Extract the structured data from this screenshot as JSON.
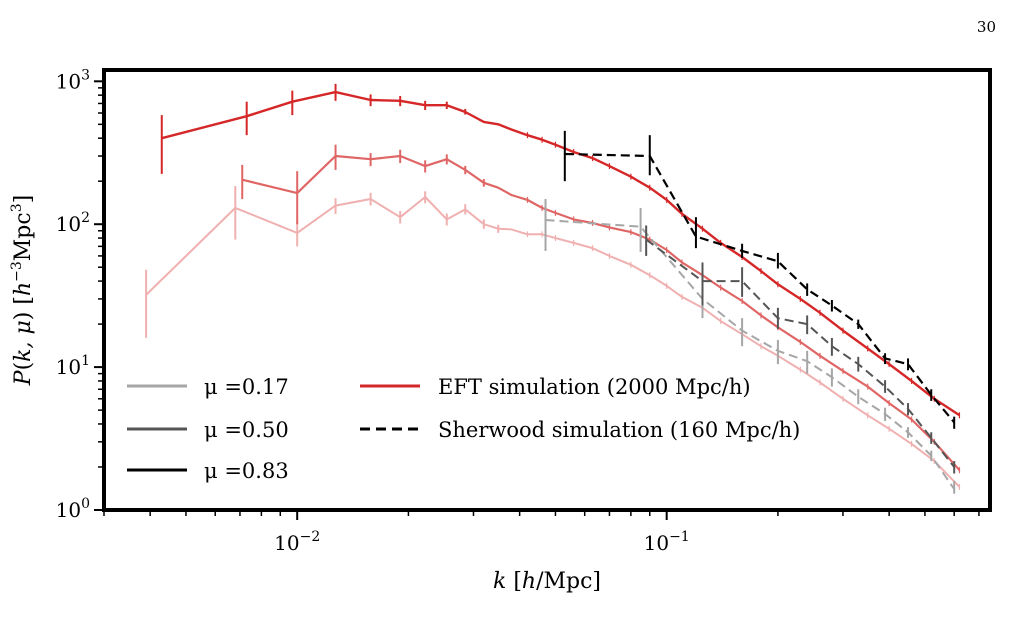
{
  "page_number": "30",
  "chart_data": {
    "type": "line",
    "title": "",
    "xlabel": "k [h/Mpc]",
    "ylabel": "P(k, μ) [h⁻³Mpc³]",
    "xscale": "log",
    "yscale": "log",
    "xlim": [
      0.003,
      0.75
    ],
    "ylim": [
      1,
      1200
    ],
    "x_tick_labels": [
      {
        "value": 0.01,
        "base": "10",
        "exp": "−2"
      },
      {
        "value": 0.1,
        "base": "10",
        "exp": "−1"
      }
    ],
    "y_tick_labels": [
      {
        "value": 1,
        "base": "10",
        "exp": "0"
      },
      {
        "value": 10,
        "base": "10",
        "exp": "1"
      },
      {
        "value": 100,
        "base": "10",
        "exp": "2"
      },
      {
        "value": 1000,
        "base": "10",
        "exp": "3"
      }
    ],
    "legend_placement": "lower-left",
    "legend": {
      "mu": [
        {
          "label": "μ =0.17",
          "color": "#a6a6a6"
        },
        {
          "label": "μ =0.50",
          "color": "#555555"
        },
        {
          "label": "μ =0.83",
          "color": "#000000"
        }
      ],
      "sims": [
        {
          "label": "EFT simulation (2000 Mpc/h)",
          "color": "#d62728",
          "style": "solid"
        },
        {
          "label": "Sherwood simulation (160 Mpc/h)",
          "color": "#000000",
          "style": "dashed"
        }
      ]
    },
    "series": [
      {
        "group": "EFT",
        "mu": 0.17,
        "color": "#f0b0b0",
        "style": "solid",
        "width": 2,
        "x": [
          0.0039,
          0.0068,
          0.01,
          0.0127,
          0.0158,
          0.019,
          0.0222,
          0.0254,
          0.0285,
          0.032,
          0.035,
          0.038,
          0.042,
          0.046,
          0.05,
          0.056,
          0.063,
          0.07,
          0.08,
          0.09,
          0.1,
          0.11,
          0.125,
          0.14,
          0.16,
          0.18,
          0.2,
          0.23,
          0.26,
          0.3,
          0.35,
          0.4,
          0.46,
          0.53,
          0.62
        ],
        "y": [
          32,
          130,
          87,
          135,
          150,
          112,
          155,
          108,
          127,
          100,
          93,
          92,
          85,
          85,
          80,
          74,
          68,
          60,
          52,
          44,
          37,
          31,
          26,
          21,
          17,
          14,
          12,
          9.6,
          7.8,
          6.0,
          4.6,
          3.7,
          2.9,
          2.2,
          1.45
        ],
        "err": [
          [
            0.0039,
            16,
            48
          ],
          [
            0.0068,
            78,
            185
          ],
          [
            0.01,
            70,
            105
          ],
          [
            0.0127,
            118,
            152
          ],
          [
            0.0158,
            135,
            166
          ],
          [
            0.019,
            101,
            124
          ],
          [
            0.0222,
            140,
            170
          ],
          [
            0.0254,
            98,
            119
          ],
          [
            0.0285,
            117,
            138
          ],
          [
            0.032,
            93,
            108
          ],
          [
            0.035,
            87,
            99
          ]
        ]
      },
      {
        "group": "EFT",
        "mu": 0.5,
        "color": "#e06666",
        "style": "solid",
        "width": 2.2,
        "x": [
          0.0071,
          0.01,
          0.0127,
          0.0158,
          0.019,
          0.0222,
          0.0254,
          0.0285,
          0.032,
          0.035,
          0.038,
          0.042,
          0.046,
          0.05,
          0.056,
          0.063,
          0.07,
          0.08,
          0.09,
          0.1,
          0.11,
          0.125,
          0.14,
          0.16,
          0.18,
          0.2,
          0.23,
          0.26,
          0.3,
          0.35,
          0.4,
          0.46,
          0.53,
          0.62
        ],
        "y": [
          205,
          165,
          300,
          285,
          300,
          255,
          285,
          240,
          195,
          180,
          160,
          148,
          130,
          120,
          108,
          102,
          95,
          88,
          78,
          66,
          54,
          44,
          36,
          29,
          23,
          19,
          15,
          12,
          9.4,
          7.3,
          5.6,
          4.3,
          3.0,
          1.9
        ],
        "err": [
          [
            0.0071,
            150,
            260
          ],
          [
            0.01,
            100,
            235
          ],
          [
            0.0127,
            240,
            360
          ],
          [
            0.0158,
            255,
            315
          ],
          [
            0.019,
            268,
            332
          ],
          [
            0.0222,
            230,
            280
          ],
          [
            0.0254,
            262,
            308
          ],
          [
            0.0285,
            224,
            256
          ],
          [
            0.032,
            183,
            207
          ]
        ]
      },
      {
        "group": "EFT",
        "mu": 0.83,
        "color": "#d62728",
        "style": "solid",
        "width": 2.4,
        "x": [
          0.0043,
          0.0073,
          0.0097,
          0.0127,
          0.0158,
          0.019,
          0.0222,
          0.0254,
          0.0285,
          0.032,
          0.035,
          0.038,
          0.042,
          0.046,
          0.05,
          0.056,
          0.063,
          0.07,
          0.08,
          0.09,
          0.1,
          0.11,
          0.125,
          0.14,
          0.16,
          0.18,
          0.2,
          0.23,
          0.26,
          0.3,
          0.35,
          0.4,
          0.46,
          0.53,
          0.62
        ],
        "y": [
          400,
          570,
          720,
          840,
          740,
          730,
          680,
          680,
          610,
          520,
          500,
          460,
          420,
          390,
          360,
          320,
          290,
          255,
          215,
          180,
          148,
          118,
          93,
          74,
          59,
          47,
          38,
          30,
          24,
          18,
          13.5,
          10.5,
          8.0,
          6.0,
          4.6
        ],
        "err": [
          [
            0.0043,
            225,
            580
          ],
          [
            0.0073,
            420,
            720
          ],
          [
            0.0097,
            580,
            860
          ],
          [
            0.0127,
            730,
            960
          ],
          [
            0.0158,
            670,
            810
          ],
          [
            0.019,
            670,
            790
          ],
          [
            0.0222,
            630,
            730
          ],
          [
            0.0254,
            640,
            720
          ],
          [
            0.0285,
            585,
            640
          ]
        ]
      },
      {
        "group": "Sherwood",
        "mu": 0.17,
        "color": "#a6a6a6",
        "style": "dashed",
        "width": 2,
        "x": [
          0.047,
          0.085,
          0.125,
          0.16,
          0.2,
          0.24,
          0.28,
          0.33,
          0.39,
          0.45,
          0.52,
          0.6
        ],
        "y": [
          107,
          96,
          30,
          18,
          13,
          11,
          8.5,
          6.2,
          4.7,
          3.5,
          2.4,
          1.4
        ],
        "err": [
          [
            0.047,
            65,
            150
          ],
          [
            0.085,
            64,
            130
          ],
          [
            0.125,
            22,
            42
          ],
          [
            0.16,
            14,
            22
          ],
          [
            0.2,
            10.5,
            15.5
          ],
          [
            0.24,
            9,
            13
          ],
          [
            0.28,
            7.3,
            9.8
          ],
          [
            0.33,
            5.5,
            7
          ],
          [
            0.39,
            4.2,
            5.2
          ],
          [
            0.45,
            3.2,
            3.8
          ],
          [
            0.52,
            2.2,
            2.6
          ],
          [
            0.6,
            1.3,
            1.6
          ]
        ]
      },
      {
        "group": "Sherwood",
        "mu": 0.5,
        "color": "#555555",
        "style": "dashed",
        "width": 2,
        "x": [
          0.088,
          0.125,
          0.16,
          0.2,
          0.24,
          0.28,
          0.33,
          0.39,
          0.45,
          0.52,
          0.6
        ],
        "y": [
          78,
          40,
          40,
          22,
          20,
          14,
          10.5,
          7.3,
          5.1,
          3.2,
          2.0
        ],
        "err": [
          [
            0.088,
            60,
            98
          ],
          [
            0.125,
            27,
            54
          ],
          [
            0.16,
            31,
            50
          ],
          [
            0.2,
            18.5,
            26
          ],
          [
            0.24,
            17,
            23
          ],
          [
            0.28,
            12,
            16
          ],
          [
            0.33,
            9.3,
            11.8
          ],
          [
            0.39,
            6.6,
            8.1
          ],
          [
            0.45,
            4.6,
            5.6
          ],
          [
            0.52,
            2.9,
            3.5
          ],
          [
            0.6,
            1.8,
            2.2
          ]
        ]
      },
      {
        "group": "Sherwood",
        "mu": 0.83,
        "color": "#000000",
        "style": "dashed",
        "width": 2.2,
        "x": [
          0.053,
          0.09,
          0.12,
          0.16,
          0.2,
          0.24,
          0.28,
          0.33,
          0.39,
          0.45,
          0.52,
          0.6
        ],
        "y": [
          310,
          300,
          82,
          65,
          55,
          35,
          27,
          20,
          11.5,
          10.5,
          6.4,
          4.1
        ],
        "err": [
          [
            0.053,
            200,
            450
          ],
          [
            0.09,
            220,
            420
          ],
          [
            0.12,
            68,
            112
          ],
          [
            0.16,
            58,
            73
          ],
          [
            0.2,
            49,
            63
          ],
          [
            0.24,
            31.5,
            38.5
          ],
          [
            0.28,
            24.5,
            29.5
          ],
          [
            0.33,
            18.5,
            21.5
          ],
          [
            0.39,
            10.5,
            12.5
          ],
          [
            0.45,
            9.5,
            11.5
          ],
          [
            0.52,
            5.8,
            7
          ],
          [
            0.6,
            3.7,
            4.5
          ]
        ]
      }
    ]
  }
}
